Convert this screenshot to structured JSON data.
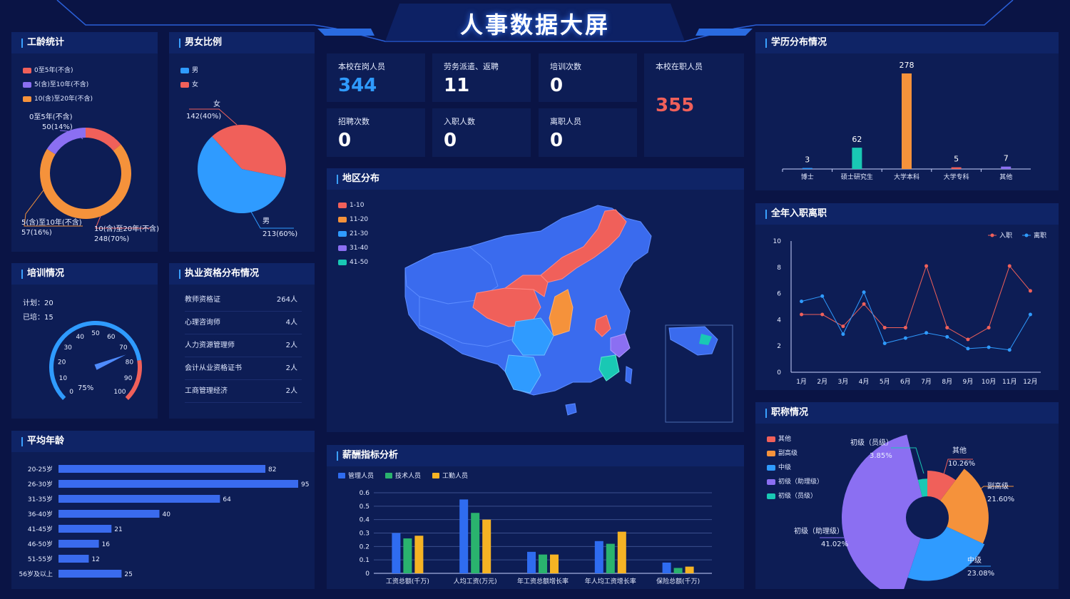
{
  "header": {
    "title": "人事数据大屏"
  },
  "seniority": {
    "title": "工龄统计",
    "legend": [
      "0至5年(不含)",
      "5(含)至10年(不含)",
      "10(含)至20年(不含)"
    ],
    "colors": [
      "#f0605a",
      "#8b6ff2",
      "#f5923b"
    ],
    "labels": [
      {
        "name": "0至5年(不含)",
        "val": "50(14%)"
      },
      {
        "name": "5(含)至10年(不含)",
        "val": "57(16%)"
      },
      {
        "name": "10(含)至20年(不含)",
        "val": "248(70%)"
      }
    ]
  },
  "gender": {
    "title": "男女比例",
    "legend": [
      "男",
      "女"
    ],
    "colors": [
      "#2f9bff",
      "#f0605a"
    ],
    "labels": [
      {
        "name": "女",
        "val": "142(40%)"
      },
      {
        "name": "男",
        "val": "213(60%)"
      }
    ]
  },
  "stats": [
    {
      "label": "本校在岗人员",
      "value": "344"
    },
    {
      "label": "劳务派遣、返聘",
      "value": "11"
    },
    {
      "label": "培训次数",
      "value": "0"
    },
    {
      "label": "本校在职人员",
      "value": "355"
    },
    {
      "label": "招聘次数",
      "value": "0"
    },
    {
      "label": "入职人数",
      "value": "0"
    },
    {
      "label": "离职人员",
      "value": "0"
    }
  ],
  "education": {
    "title": "学历分布情况"
  },
  "training": {
    "title": "培训情况",
    "plan": "计划：20",
    "done": "已培：15",
    "percent": "75%",
    "ticks": [
      "0",
      "10",
      "20",
      "30",
      "40",
      "50",
      "60",
      "70",
      "80",
      "90",
      "100"
    ],
    "value": 75
  },
  "qualification": {
    "title": "执业资格分布情况",
    "rows": [
      {
        "name": "教师资格证",
        "count": "264人"
      },
      {
        "name": "心理咨询师",
        "count": "4人"
      },
      {
        "name": "人力资源管理师",
        "count": "2人"
      },
      {
        "name": "会计从业资格证书",
        "count": "2人"
      },
      {
        "name": "工商管理经济",
        "count": "2人"
      }
    ]
  },
  "map": {
    "title": "地区分布",
    "legend": [
      "1-10",
      "11-20",
      "21-30",
      "31-40",
      "41-50"
    ],
    "colors": [
      "#f0605a",
      "#f5923b",
      "#2f9bff",
      "#8b6ff2",
      "#19c8b4"
    ]
  },
  "hires": {
    "title": "全年入职离职"
  },
  "avg_age": {
    "title": "平均年龄"
  },
  "salary": {
    "title": "薪酬指标分析"
  },
  "titles": {
    "title": "职称情况",
    "legend": [
      "其他",
      "副高级",
      "中级",
      "初级（助理级）",
      "初级（员级）"
    ],
    "colors": [
      "#f0605a",
      "#f5923b",
      "#2f9bff",
      "#8b6ff2",
      "#19c8b4"
    ],
    "labels": [
      {
        "name": "初级（员级）",
        "val": "3.85%"
      },
      {
        "name": "其他",
        "val": "10.26%"
      },
      {
        "name": "副高级",
        "val": "21.60%"
      },
      {
        "name": "初级（助理级）",
        "val": "41.02%"
      },
      {
        "name": "中级",
        "val": "23.08%"
      }
    ]
  },
  "chart_data": [
    {
      "type": "pie",
      "title": "",
      "categories": [
        "0至5年(不含)",
        "5(含)至10年(不含)",
        "10(含)至20年(不含)"
      ],
      "values": [
        50,
        57,
        248
      ]
    },
    {
      "type": "pie",
      "title": "",
      "categories": [
        "男",
        "女"
      ],
      "values": [
        213,
        142
      ]
    },
    {
      "type": "bar",
      "title": "",
      "categories": [
        "博士",
        "硕士研究生",
        "大学本科",
        "大学专科",
        "其他"
      ],
      "values": [
        3,
        62,
        278,
        5,
        7
      ],
      "colors": [
        "#2f9bff",
        "#19c8b4",
        "#f5923b",
        "#f0605a",
        "#8b6ff2"
      ]
    },
    {
      "type": "line",
      "title": "",
      "categories": [
        "1月",
        "2月",
        "3月",
        "4月",
        "5月",
        "6月",
        "7月",
        "8月",
        "9月",
        "10月",
        "11月",
        "12月"
      ],
      "ylim": [
        0,
        10
      ],
      "yticks": [
        0,
        2,
        4,
        6,
        8,
        10
      ],
      "series": [
        {
          "name": "入职",
          "color": "#f0605a",
          "values": [
            4.4,
            4.4,
            3.5,
            5.2,
            3.4,
            3.4,
            8.1,
            3.4,
            2.5,
            3.4,
            8.1,
            6.2
          ]
        },
        {
          "name": "离职",
          "color": "#2f9bff",
          "values": [
            5.4,
            5.8,
            2.9,
            6.1,
            2.2,
            2.6,
            3.0,
            2.7,
            1.8,
            1.9,
            1.7,
            4.4
          ]
        }
      ]
    },
    {
      "type": "bar",
      "title": "",
      "orientation": "horizontal",
      "categories": [
        "20-25岁",
        "26-30岁",
        "31-35岁",
        "36-40岁",
        "41-45岁",
        "46-50岁",
        "51-55岁",
        "56岁及以上"
      ],
      "values": [
        82,
        95,
        64,
        40,
        21,
        16,
        12,
        25
      ]
    },
    {
      "type": "bar",
      "title": "",
      "categories": [
        "工资总额(千万)",
        "人均工资(万元)",
        "年工资总额增长率",
        "年人均工资增长率",
        "保险总额(千万)"
      ],
      "ylim": [
        0,
        0.6
      ],
      "yticks": [
        0,
        0.1,
        0.2,
        0.3,
        0.4,
        0.5,
        0.6
      ],
      "series": [
        {
          "name": "管理人员",
          "color": "#2f6cf0",
          "values": [
            0.3,
            0.55,
            0.16,
            0.24,
            0.08
          ]
        },
        {
          "name": "技术人员",
          "color": "#2ab36e",
          "values": [
            0.26,
            0.45,
            0.14,
            0.22,
            0.04
          ]
        },
        {
          "name": "工勤人员",
          "color": "#f5b324",
          "values": [
            0.28,
            0.4,
            0.14,
            0.31,
            0.05
          ]
        }
      ]
    },
    {
      "type": "pie",
      "title": "",
      "categories": [
        "其他",
        "副高级",
        "中级",
        "初级（助理级）",
        "初级（员级）"
      ],
      "values": [
        10.26,
        21.6,
        23.08,
        41.02,
        3.85
      ]
    }
  ]
}
